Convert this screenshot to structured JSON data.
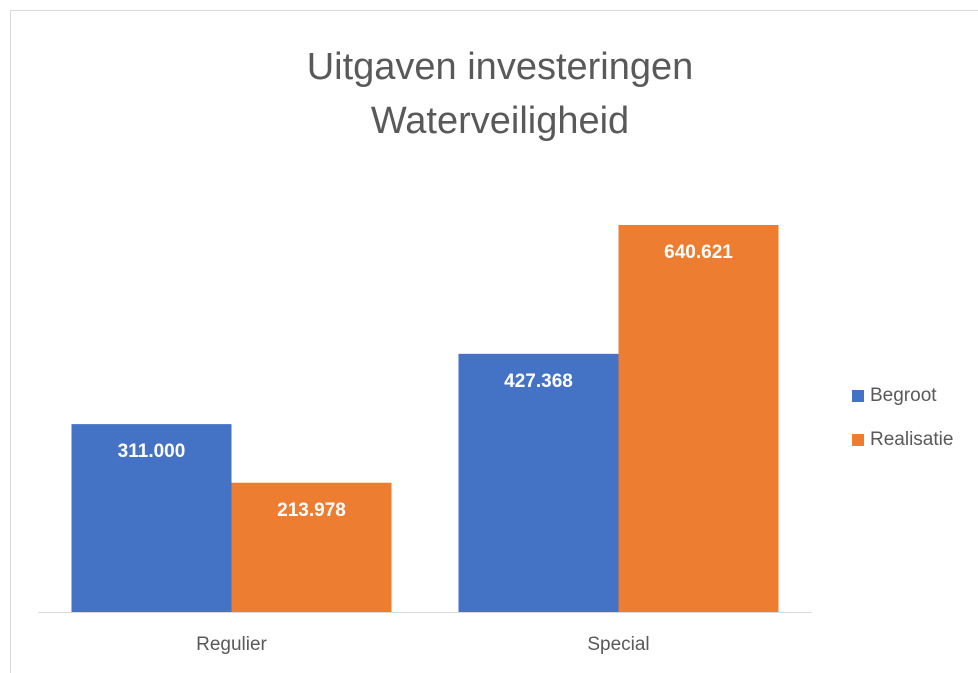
{
  "chart_data": {
    "type": "bar",
    "title": "Uitgaven investeringen Waterveiligheid",
    "categories": [
      "Regulier",
      "Special"
    ],
    "series": [
      {
        "name": "Begroot",
        "color": "#4472c4",
        "values": [
          311000,
          427368
        ],
        "value_labels": [
          "311.000",
          "427.368"
        ]
      },
      {
        "name": "Realisatie",
        "color": "#ed7d31",
        "values": [
          213978,
          640621
        ],
        "value_labels": [
          "213.978",
          "640.621"
        ]
      }
    ]
  }
}
